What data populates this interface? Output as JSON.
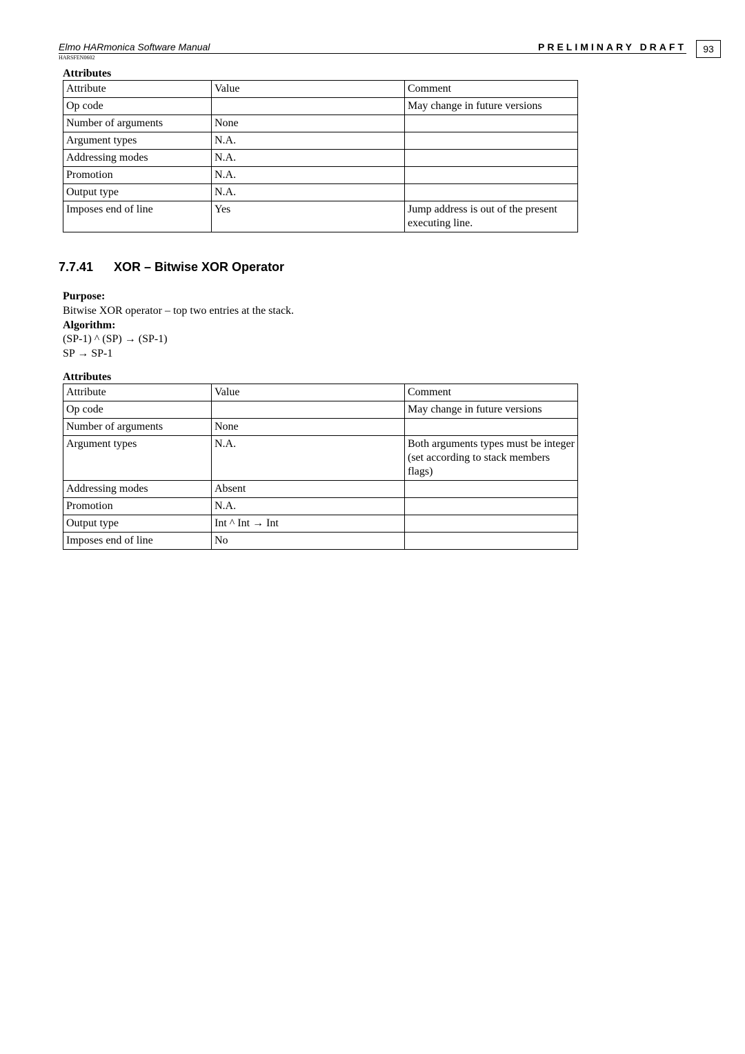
{
  "header": {
    "left": "Elmo HARmonica Software Manual",
    "right": "PRELIMINARY DRAFT",
    "doc_code": "HARSFEN0602",
    "page": "93"
  },
  "table1": {
    "title": "Attributes",
    "header": {
      "c1": "Attribute",
      "c2": "Value",
      "c3": "Comment"
    },
    "rows": [
      {
        "c1": "Op code",
        "c2": "",
        "c3": "May change in future versions"
      },
      {
        "c1": "Number of arguments",
        "c2": "None",
        "c3": ""
      },
      {
        "c1": "Argument types",
        "c2": "N.A.",
        "c3": ""
      },
      {
        "c1": "Addressing modes",
        "c2": "N.A.",
        "c3": ""
      },
      {
        "c1": "Promotion",
        "c2": "N.A.",
        "c3": ""
      },
      {
        "c1": "Output type",
        "c2": "N.A.",
        "c3": ""
      },
      {
        "c1": "Imposes end of line",
        "c2": "Yes",
        "c3": "Jump address is out of the present executing line."
      }
    ]
  },
  "section": {
    "number": "7.7.41",
    "title": "XOR – Bitwise XOR Operator"
  },
  "purpose": {
    "label": "Purpose:",
    "text": "Bitwise XOR operator – top two entries at the stack."
  },
  "algorithm": {
    "label": "Algorithm:",
    "line1": "(SP-1) ^ (SP) → (SP-1)",
    "line2": "SP → SP-1"
  },
  "table2": {
    "title": "Attributes",
    "header": {
      "c1": "Attribute",
      "c2": "Value",
      "c3": "Comment"
    },
    "rows": [
      {
        "c1": "Op code",
        "c2": "",
        "c3": "May change in future versions"
      },
      {
        "c1": "Number of arguments",
        "c2": "None",
        "c3": ""
      },
      {
        "c1": "Argument types",
        "c2": "N.A.",
        "c3": "Both arguments types must be integer (set according to stack members flags)"
      },
      {
        "c1": "Addressing modes",
        "c2": "Absent",
        "c3": ""
      },
      {
        "c1": "Promotion",
        "c2": "N.A.",
        "c3": ""
      },
      {
        "c1": "Output type",
        "c2": "Int ^ Int → Int",
        "c3": ""
      },
      {
        "c1": "Imposes end of line",
        "c2": "No",
        "c3": ""
      }
    ]
  }
}
